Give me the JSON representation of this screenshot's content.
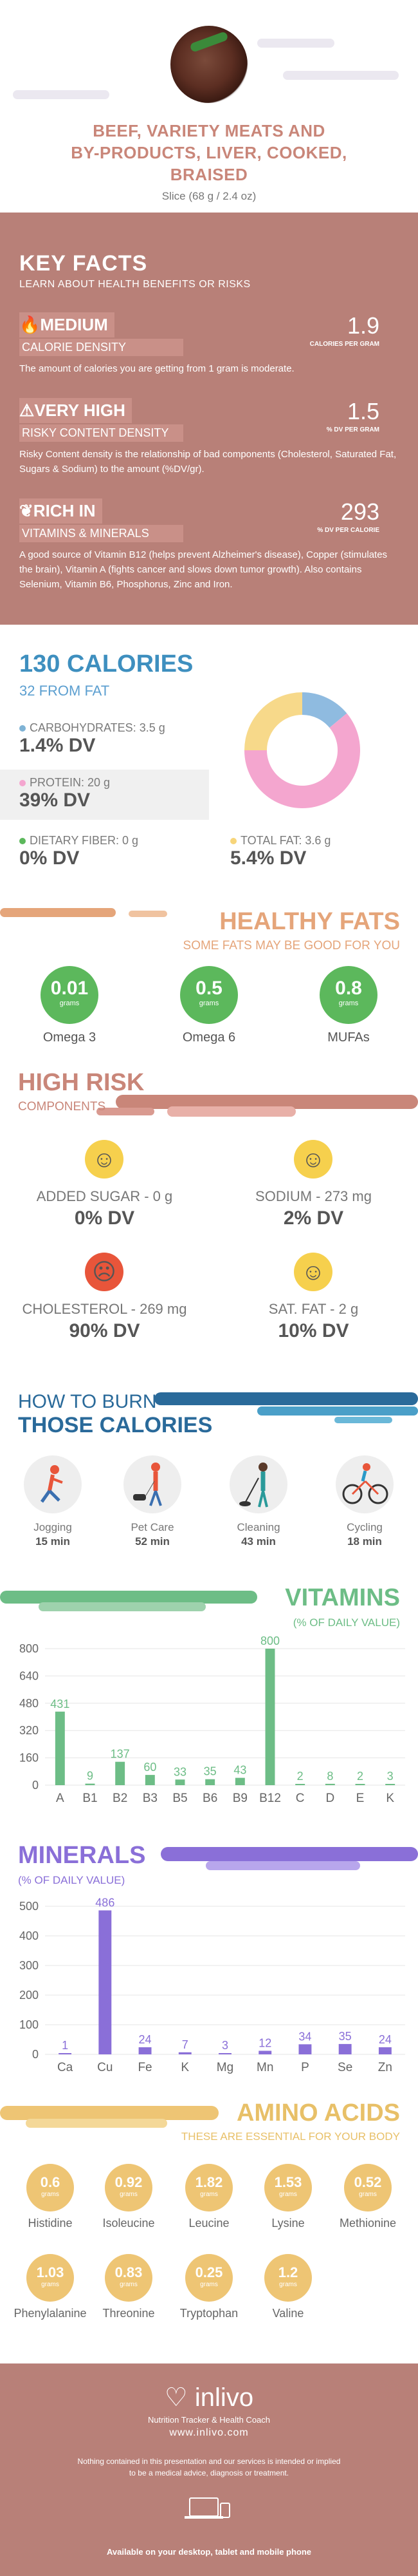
{
  "header": {
    "title_lines": [
      "BEEF, VARIETY MEATS AND",
      "BY-PRODUCTS, LIVER, COOKED,",
      "BRAISED"
    ],
    "serving": "Slice (68 g / 2.4 oz)"
  },
  "key_facts": {
    "title": "KEY FACTS",
    "subtitle": "LEARN ABOUT HEALTH BENEFITS OR RISKS",
    "items": [
      {
        "label1": "MEDIUM",
        "label2": "CALORIE DENSITY",
        "value": "1.9",
        "unit": "CALORIES PER GRAM",
        "desc": "The amount of calories you are getting from 1 gram is moderate."
      },
      {
        "label1": "VERY HIGH",
        "label2": "RISKY CONTENT DENSITY",
        "value": "1.5",
        "unit": "% DV PER GRAM",
        "desc": "Risky Content density is the relationship of bad components (Cholesterol, Saturated Fat, Sugars & Sodium) to the amount (%DV/gr)."
      },
      {
        "label1": "RICH  IN",
        "label2": "VITAMINS & MINERALS",
        "value": "293",
        "unit": "% DV PER CALORIE",
        "desc": "A good source of Vitamin B12 (helps prevent Alzheimer's disease), Copper (stimulates the brain), Vitamin A (fights cancer and slows down tumor growth). Also contains Selenium, Vitamin B6, Phosphorus, Zinc and Iron."
      }
    ]
  },
  "calories": {
    "title": "130 CALORIES",
    "from_fat": "32 FROM FAT",
    "carbs": {
      "label": "CARBOHYDRATES: 3.5 g",
      "dv": "1.4% DV",
      "color": "#7fb3d5"
    },
    "protein": {
      "label": "PROTEIN: 20 g",
      "dv": "39% DV",
      "color": "#f4a6cf"
    },
    "fiber": {
      "label": "DIETARY FIBER: 0 g",
      "dv": "0% DV",
      "color": "#5cb85c"
    },
    "fat": {
      "label": "TOTAL FAT: 3.6 g",
      "dv": "5.4% DV",
      "color": "#f7d57a"
    },
    "donut": [
      {
        "name": "carbs",
        "value": 14,
        "color": "#8fbbe0"
      },
      {
        "name": "protein",
        "value": 61,
        "color": "#f4a6cf"
      },
      {
        "name": "fat",
        "value": 25,
        "color": "#f7d98a"
      }
    ]
  },
  "healthy_fats": {
    "title": "HEALTHY FATS",
    "subtitle": "SOME FATS MAY BE GOOD FOR YOU",
    "unit": "grams",
    "items": [
      {
        "value": "0.01",
        "name": "Omega 3"
      },
      {
        "value": "0.5",
        "name": "Omega 6"
      },
      {
        "value": "0.8",
        "name": "MUFAs"
      }
    ]
  },
  "high_risk": {
    "title": "HIGH RISK",
    "subtitle": "COMPONENTS",
    "items": [
      {
        "label": "ADDED SUGAR - 0 g",
        "dv": "0% DV",
        "mood": "happy"
      },
      {
        "label": "SODIUM - 273 mg",
        "dv": "2% DV",
        "mood": "happy"
      },
      {
        "label": "CHOLESTEROL - 269 mg",
        "dv": "90% DV",
        "mood": "sad"
      },
      {
        "label": "SAT. FAT - 2 g",
        "dv": "10% DV",
        "mood": "happy"
      }
    ]
  },
  "burn": {
    "title1": "HOW TO BURN",
    "title2": "THOSE CALORIES",
    "items": [
      {
        "name": "Jogging",
        "min": "15 min",
        "icon": "jogging-icon"
      },
      {
        "name": "Pet Care",
        "min": "52 min",
        "icon": "dog-walking-icon"
      },
      {
        "name": "Cleaning",
        "min": "43 min",
        "icon": "cleaning-icon"
      },
      {
        "name": "Cycling",
        "min": "18 min",
        "icon": "cycling-icon"
      }
    ]
  },
  "vitamins": {
    "title": "VITAMINS",
    "subtitle": "(% OF DAILY VALUE)",
    "chart_data": {
      "type": "bar",
      "categories": [
        "A",
        "B1",
        "B2",
        "B3",
        "B5",
        "B6",
        "B9",
        "B12",
        "C",
        "D",
        "E",
        "K"
      ],
      "values": [
        431,
        9,
        137,
        60,
        33,
        35,
        43,
        800,
        2,
        8,
        2,
        3
      ],
      "yticks": [
        0,
        160,
        320,
        480,
        640,
        800
      ],
      "ylim": [
        0,
        800
      ],
      "color": "#6dbd86"
    }
  },
  "minerals": {
    "title": "MINERALS",
    "subtitle": "(% OF DAILY VALUE)",
    "chart_data": {
      "type": "bar",
      "categories": [
        "Ca",
        "Cu",
        "Fe",
        "K",
        "Mg",
        "Mn",
        "P",
        "Se",
        "Zn"
      ],
      "values": [
        1,
        486,
        24,
        7,
        3,
        12,
        34,
        35,
        24
      ],
      "yticks": [
        0,
        100,
        200,
        300,
        400,
        500
      ],
      "ylim": [
        0,
        500
      ],
      "color": "#8a6fd8"
    }
  },
  "amino": {
    "title": "AMINO ACIDS",
    "subtitle": "THESE ARE ESSENTIAL FOR YOUR BODY",
    "unit": "grams",
    "items": [
      {
        "value": "0.6",
        "name": "Histidine"
      },
      {
        "value": "0.92",
        "name": "Isoleucine"
      },
      {
        "value": "1.82",
        "name": "Leucine"
      },
      {
        "value": "1.53",
        "name": "Lysine"
      },
      {
        "value": "0.52",
        "name": "Methionine"
      },
      {
        "value": "1.03",
        "name": "Phenylalanine"
      },
      {
        "value": "0.83",
        "name": "Threonine"
      },
      {
        "value": "0.25",
        "name": "Tryptophan"
      },
      {
        "value": "1.2",
        "name": "Valine"
      }
    ]
  },
  "footer": {
    "brand": "inlivo",
    "tagline": "Nutrition Tracker & Health Coach",
    "url": "www.inlivo.com",
    "disclaimer1": "Nothing contained in this presentation and our services is intended or implied",
    "disclaimer2": "to be a medical advice, diagnosis or treatment.",
    "available": "Available on your desktop, tablet and mobile phone"
  }
}
